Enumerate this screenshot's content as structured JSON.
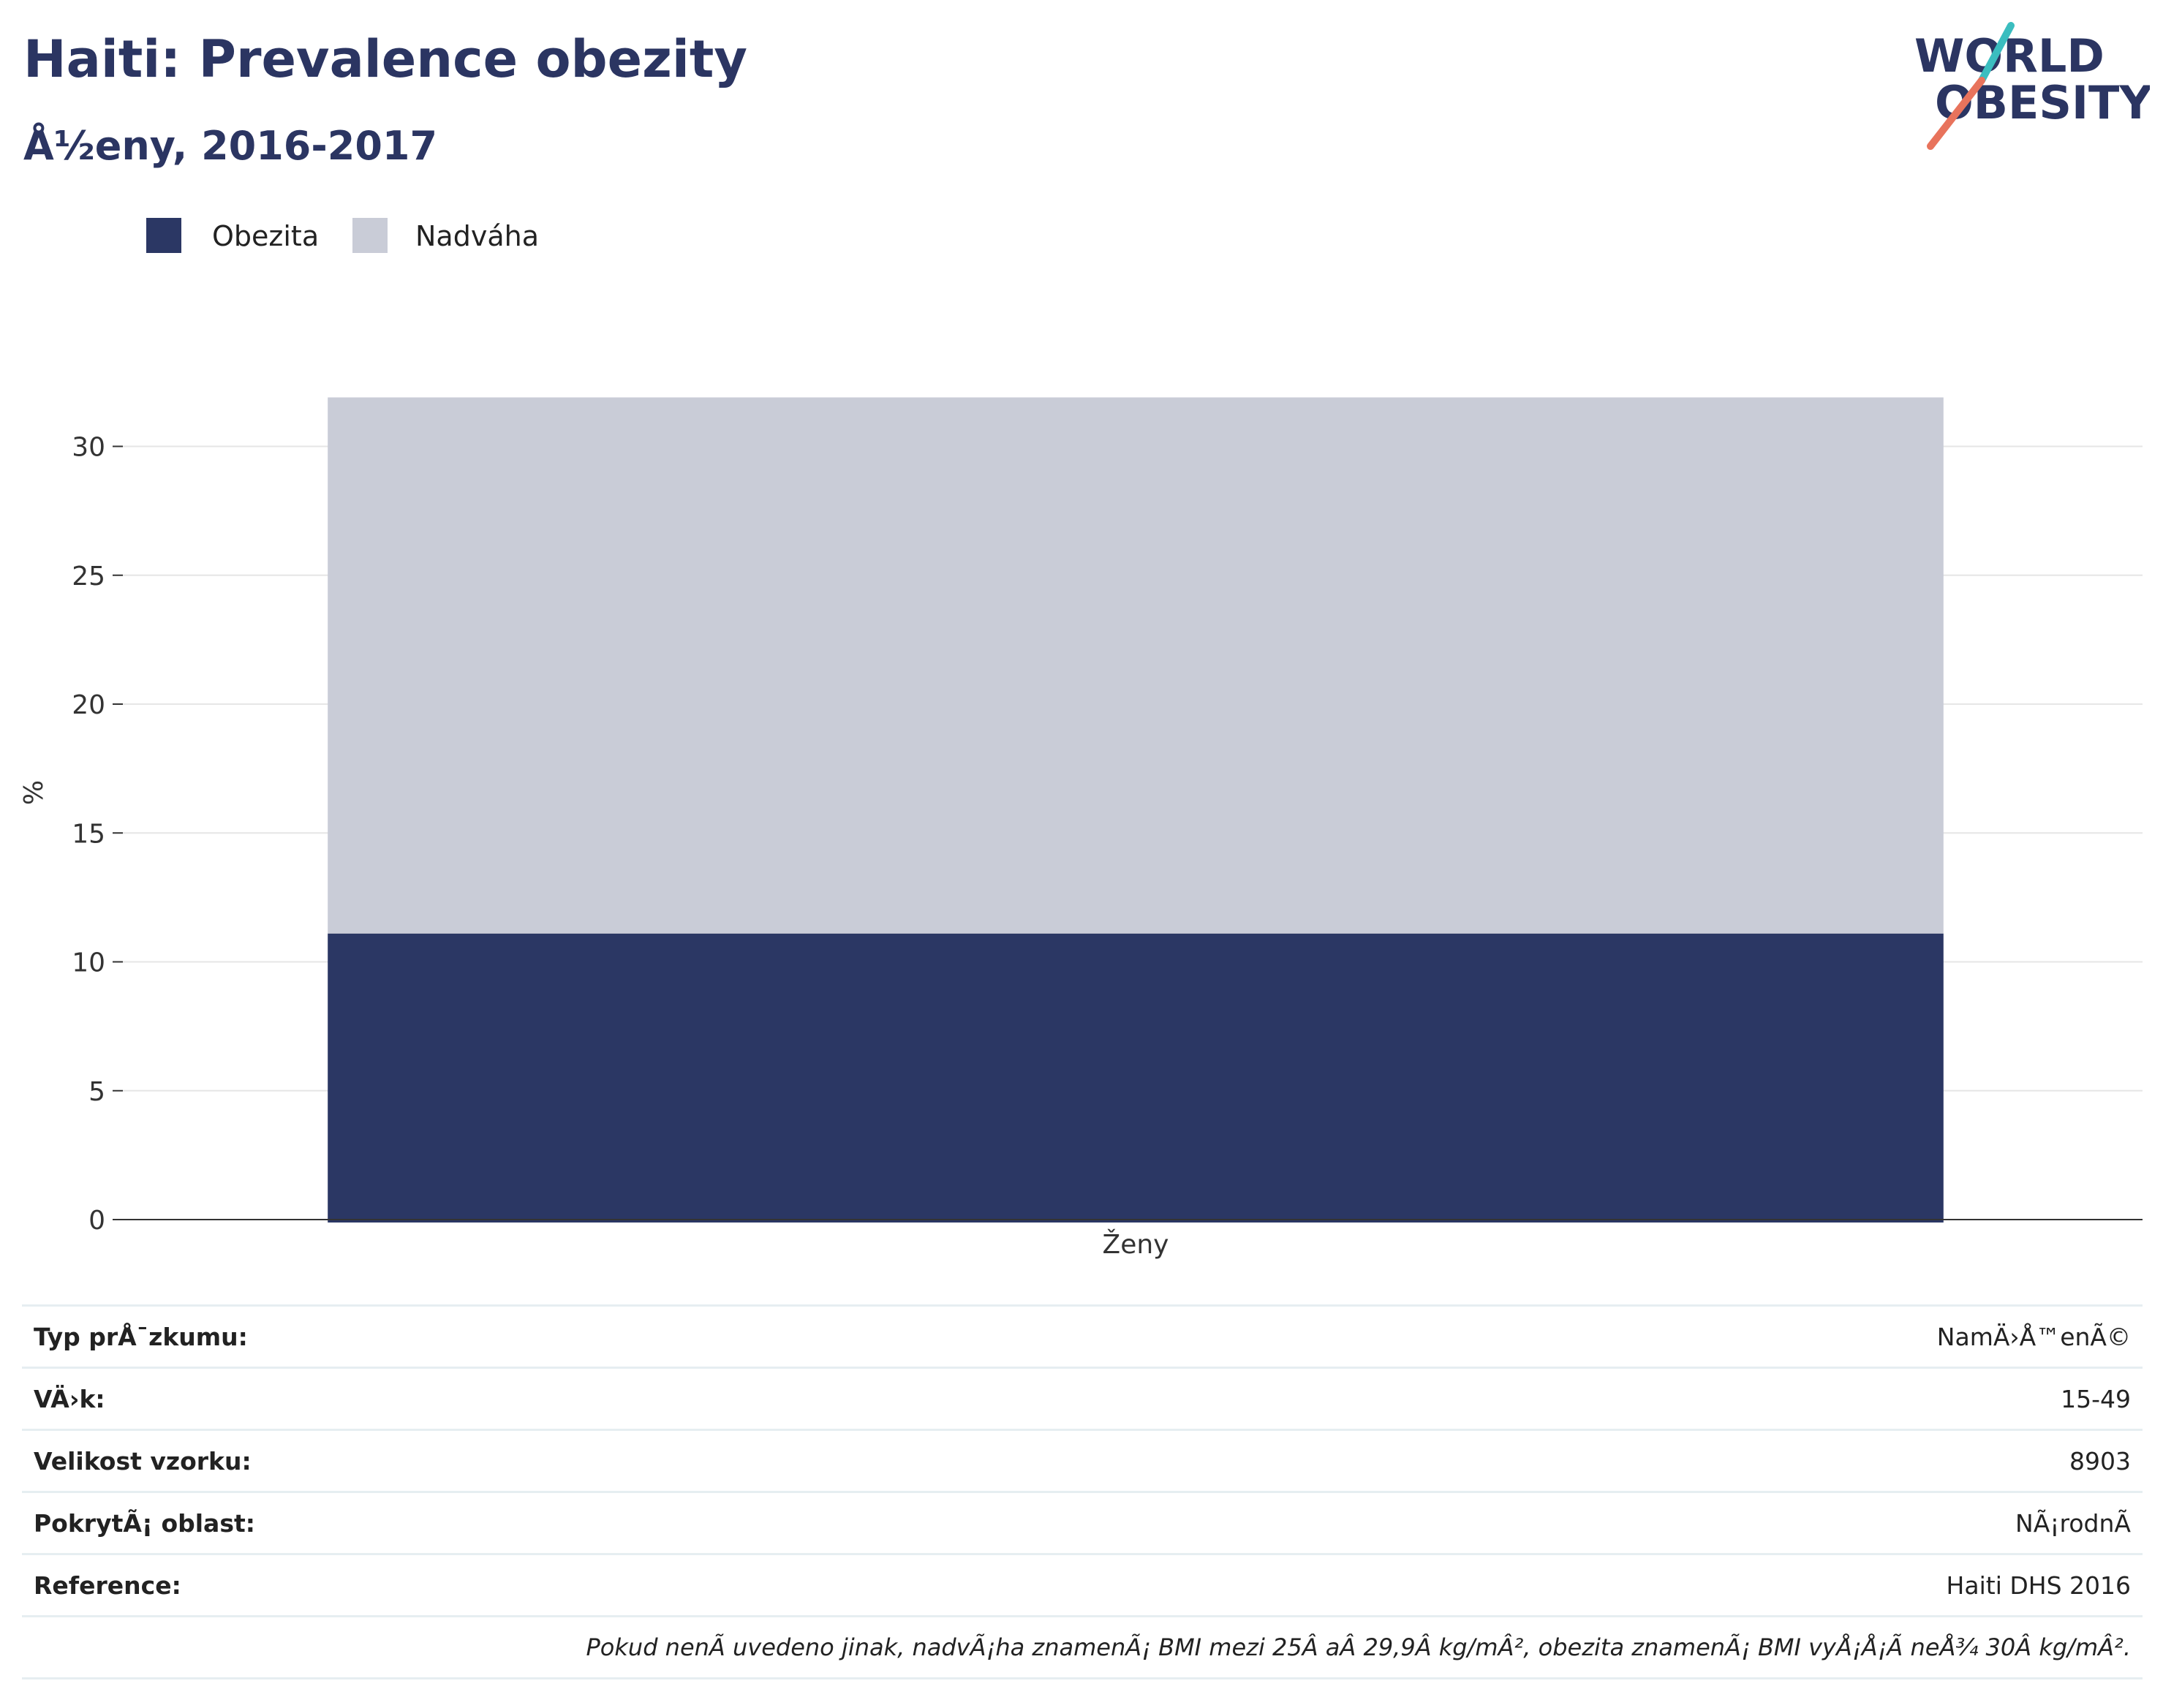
{
  "header": {
    "title": "Haiti: Prevalence obezity",
    "subtitle": "Å½eny, 2016-2017",
    "logo_line1": "WORLD",
    "logo_line2": "OBESITY"
  },
  "colors": {
    "obesity": "#2b3764",
    "overweight": "#c9ccd7",
    "title": "#2b3562",
    "logo_teal": "#3bbdbf",
    "logo_coral": "#e8735c"
  },
  "chart_data": {
    "type": "bar",
    "stacked": true,
    "categories": [
      "Ženy"
    ],
    "series": [
      {
        "name": "Obezita",
        "values": [
          11.1
        ]
      },
      {
        "name": "Nadváha",
        "values": [
          20.8
        ]
      }
    ],
    "ylabel": "%",
    "xlabel": "",
    "ylim": [
      0,
      32
    ],
    "yticks": [
      0,
      5,
      10,
      15,
      20,
      25,
      30
    ],
    "grid": true,
    "legend_position": "top-left"
  },
  "info": {
    "rows": [
      {
        "label": "Typ prÅ¯zkumu:",
        "value": "NamÄ›Å™enÃ©"
      },
      {
        "label": "VÄ›k:",
        "value": "15-49"
      },
      {
        "label": "Velikost vzorku:",
        "value": "8903"
      },
      {
        "label": "PokrytÃ¡ oblast:",
        "value": "NÃ¡rodnÃ"
      },
      {
        "label": "Reference:",
        "value": "Haiti DHS 2016"
      }
    ],
    "footnote": "Pokud nenÃ uvedeno jinak, nadvÃ¡ha znamenÃ¡ BMI mezi 25Â aÂ 29,9Â kg/mÂ², obezita znamenÃ¡ BMI vyÅ¡Å¡Ã neÅ¾ 30Â kg/mÂ²."
  }
}
